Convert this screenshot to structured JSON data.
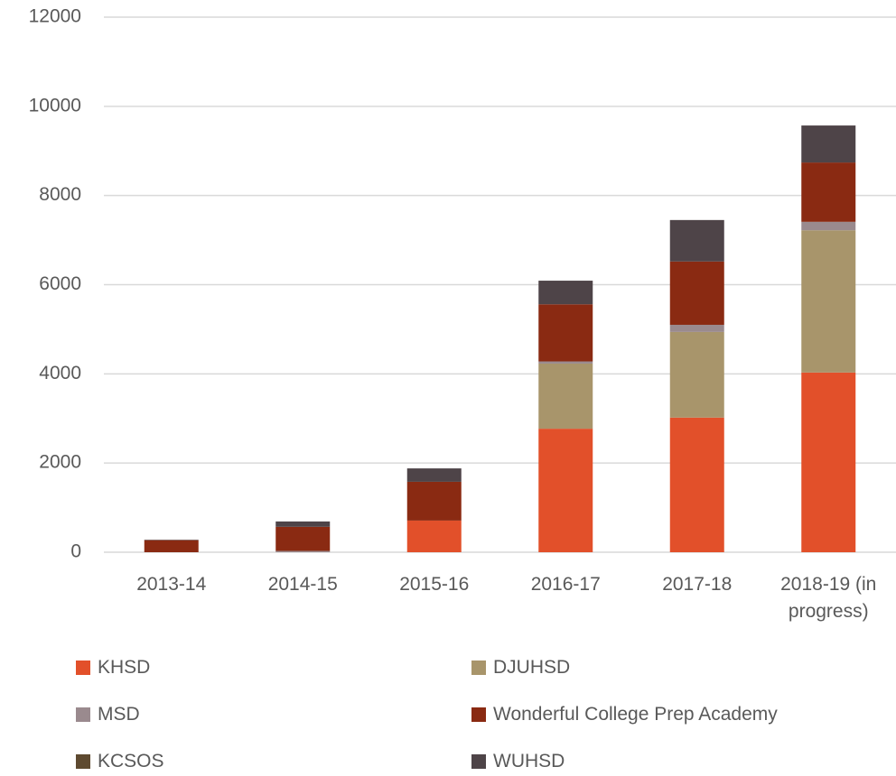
{
  "chart_data": {
    "type": "stacked_bar",
    "categories": [
      "2013-14",
      "2014-15",
      "2015-16",
      "2016-17",
      "2017-18",
      "2018-19 (in progress)"
    ],
    "series": [
      {
        "name": "KHSD",
        "color": "#e2502a",
        "values": [
          0,
          0,
          710,
          2770,
          3020,
          4030
        ]
      },
      {
        "name": "DJUHSD",
        "color": "#a8956b",
        "values": [
          0,
          0,
          0,
          1460,
          1920,
          3190
        ]
      },
      {
        "name": "MSD",
        "color": "#9a8a8e",
        "values": [
          0,
          30,
          0,
          50,
          160,
          190
        ]
      },
      {
        "name": "Wonderful College Prep Academy",
        "color": "#8a2a12",
        "values": [
          270,
          540,
          870,
          1280,
          1420,
          1330
        ]
      },
      {
        "name": "KCSOS",
        "color": "#5e4a30",
        "values": [
          0,
          0,
          0,
          0,
          0,
          0
        ]
      },
      {
        "name": "WUHSD",
        "color": "#4e4448",
        "values": [
          10,
          120,
          300,
          530,
          930,
          830
        ]
      }
    ],
    "ylim": [
      0,
      12000
    ],
    "yticks": [
      0,
      2000,
      4000,
      6000,
      8000,
      10000,
      12000
    ],
    "grid": true
  }
}
